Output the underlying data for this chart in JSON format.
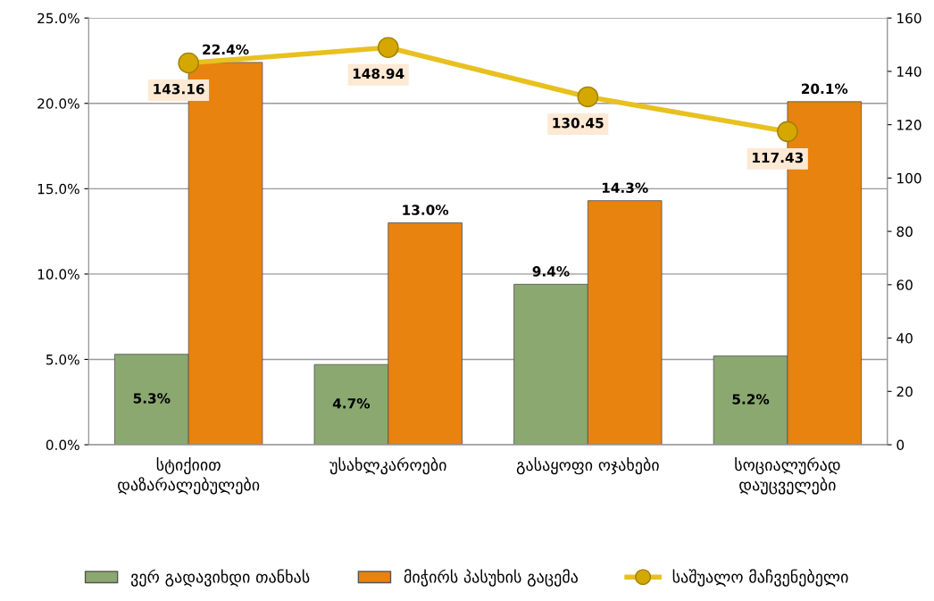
{
  "chart_data": {
    "type": "bar",
    "categories": [
      "სტიქიით\nდაზარალებულები",
      "უსახლკაროები",
      "გასაყოფი ოჯახები",
      "სოციალურად\nდაუცველები"
    ],
    "series": [
      {
        "name": "ვერ გადავიხდი თანხას",
        "color": "#8aa870",
        "values": [
          5.3,
          4.7,
          9.4,
          5.2
        ],
        "value_labels": [
          "5.3%",
          "4.7%",
          "9.4%",
          "5.2%"
        ]
      },
      {
        "name": "მიჭირს პასუხის გაცემა",
        "color": "#e8830f",
        "values": [
          22.4,
          13.0,
          14.3,
          20.1
        ],
        "value_labels": [
          "22.4%",
          "13.0%",
          "14.3%",
          "20.1%"
        ]
      },
      {
        "name": "საშუალო მაჩვენებელი",
        "type": "line",
        "axis": "y2",
        "color": "#e8c020",
        "marker": "circle",
        "values": [
          143.16,
          148.94,
          130.45,
          117.43
        ],
        "value_labels": [
          "143.16",
          "148.94",
          "130.45",
          "117.43"
        ]
      }
    ],
    "ylim": [
      0,
      25
    ],
    "yticks": [
      {
        "value": 0,
        "label": "0.0%"
      },
      {
        "value": 5,
        "label": "5.0%"
      },
      {
        "value": 10,
        "label": "10.0%"
      },
      {
        "value": 15,
        "label": "15.0%"
      },
      {
        "value": 20,
        "label": "20.0%"
      },
      {
        "value": 25,
        "label": "25.0%"
      }
    ],
    "y2lim": [
      0,
      160
    ],
    "y2ticks": [
      0,
      20,
      40,
      60,
      80,
      100,
      120,
      140,
      160
    ],
    "grid": "y",
    "legend": "bottom"
  }
}
